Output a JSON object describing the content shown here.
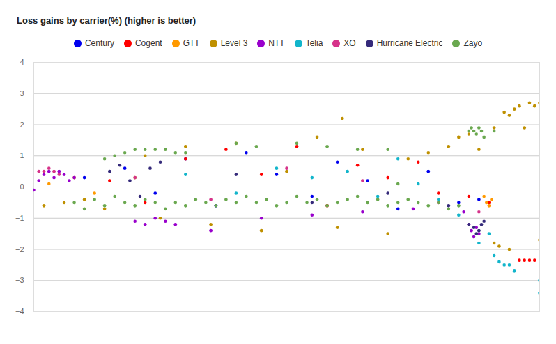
{
  "chart_data": {
    "type": "scatter",
    "title": "Loss gains by carrier(%) (higher is better)",
    "legend": "top",
    "grid": true,
    "tick_labels": "y",
    "marker": "circle",
    "xlim": [
      0,
      100
    ],
    "xticks": [],
    "ylim": [
      -4,
      4
    ],
    "yticks": [
      -4,
      -3,
      -2,
      -1,
      0,
      1,
      2,
      3,
      4
    ],
    "series": [
      {
        "name": "Century",
        "color": "#0000ee",
        "x": [
          10,
          18,
          24,
          30,
          36,
          42,
          48,
          55,
          60,
          66,
          72,
          78,
          84,
          88
        ],
        "values": [
          0.3,
          0.6,
          -0.2,
          0.9,
          -0.6,
          1.1,
          0.4,
          -0.3,
          0.8,
          0.2,
          -0.7,
          0.5,
          -0.5,
          -0.4
        ]
      },
      {
        "name": "Cogent",
        "color": "#ff0000",
        "x": [
          15,
          22,
          30,
          38,
          45,
          52,
          58,
          64,
          70,
          76,
          80,
          86,
          90,
          96,
          97,
          98,
          99
        ],
        "values": [
          0.2,
          -0.5,
          0.9,
          1.2,
          0.4,
          1.3,
          -0.6,
          0.7,
          0.3,
          0.8,
          -0.2,
          -0.3,
          -0.5,
          -2.35,
          -2.35,
          -2.35,
          -2.35
        ]
      },
      {
        "name": "GTT",
        "color": "#ff9900",
        "x": [
          3,
          8,
          12,
          89,
          89.5,
          90,
          90.5
        ],
        "values": [
          0.1,
          0.3,
          -0.2,
          -0.3,
          -0.5,
          -0.6,
          -0.4
        ]
      },
      {
        "name": "Level 3",
        "color": "#bf9000",
        "x": [
          2,
          6,
          10,
          14,
          20,
          22,
          25,
          30,
          35,
          40,
          45,
          50,
          56,
          60,
          61,
          65,
          70,
          74,
          78,
          82,
          84,
          86,
          88,
          91,
          93,
          94,
          95,
          96,
          97,
          98,
          99,
          100,
          100,
          91,
          92,
          94
        ],
        "values": [
          -0.6,
          -0.5,
          -0.4,
          -0.7,
          0.3,
          1.0,
          -1.0,
          1.3,
          -1.2,
          1.4,
          -1.4,
          0.5,
          1.6,
          -1.3,
          2.2,
          1.2,
          -1.5,
          0.9,
          1.1,
          1.3,
          1.6,
          1.7,
          1.2,
          1.9,
          2.4,
          2.3,
          2.5,
          2.6,
          1.9,
          2.7,
          2.6,
          2.7,
          -1.7,
          -1.8,
          -1.9,
          -2.0
        ]
      },
      {
        "name": "NTT",
        "color": "#9900cc",
        "x": [
          0,
          1,
          2,
          3,
          4,
          5,
          6,
          7,
          8,
          20,
          22,
          24,
          26,
          28,
          35,
          45,
          55,
          65,
          75,
          85,
          86,
          86.5,
          87,
          87.5,
          88
        ],
        "values": [
          -0.1,
          0.2,
          0.4,
          0.5,
          0.3,
          0.5,
          0.4,
          0.2,
          0.3,
          -1.1,
          -1.2,
          -1.0,
          -1.1,
          -1.2,
          -1.4,
          -1.0,
          -0.9,
          -0.8,
          -0.7,
          -0.8,
          -1.2,
          -1.4,
          -1.6,
          -1.3,
          -1.5
        ]
      },
      {
        "name": "Telia",
        "color": "#12b5cb",
        "x": [
          30,
          40,
          48,
          55,
          62,
          68,
          72,
          76,
          80,
          84,
          88,
          90,
          91,
          92,
          93,
          94,
          95,
          100,
          100
        ],
        "values": [
          0.4,
          -0.2,
          0.6,
          0.3,
          0.5,
          -0.3,
          0.9,
          0.1,
          -0.4,
          -0.9,
          -1.8,
          -1.5,
          -2.2,
          -2.4,
          -2.5,
          -2.5,
          -2.7,
          -3.0,
          -3.4
        ]
      },
      {
        "name": "XO",
        "color": "#d6338a",
        "x": [
          1,
          2,
          3,
          4,
          5,
          20,
          35,
          50,
          65,
          80,
          88
        ],
        "values": [
          0.5,
          0.5,
          0.6,
          0.5,
          0.4,
          0.3,
          -0.4,
          0.6,
          0.2,
          -0.5,
          -0.8
        ]
      },
      {
        "name": "Hurricane Electric",
        "color": "#352a7a",
        "x": [
          15,
          17,
          19,
          21,
          23,
          25,
          40,
          55,
          70,
          82,
          86,
          87,
          87.5,
          88,
          88.5,
          89
        ],
        "values": [
          0.5,
          0.7,
          0.2,
          -0.3,
          0.6,
          0.8,
          0.4,
          -0.5,
          -0.2,
          -0.6,
          -1.2,
          -1.3,
          -1.5,
          -1.4,
          -1.2,
          -1.1
        ]
      },
      {
        "name": "Zayo",
        "color": "#6aa84f",
        "x": [
          8,
          10,
          12,
          14,
          16,
          18,
          20,
          22,
          24,
          26,
          28,
          30,
          32,
          34,
          36,
          38,
          40,
          42,
          44,
          46,
          48,
          50,
          52,
          54,
          56,
          58,
          60,
          62,
          64,
          66,
          68,
          70,
          72,
          74,
          76,
          78,
          80,
          82,
          84,
          14,
          16,
          18,
          20,
          22,
          24,
          26,
          28,
          30,
          40,
          44,
          52,
          58,
          64,
          70,
          86,
          86.5,
          87,
          87.5,
          88,
          88.5,
          89,
          91,
          72
        ],
        "values": [
          -0.5,
          -0.7,
          -0.4,
          -0.6,
          -0.3,
          -0.5,
          -0.6,
          -0.4,
          -0.5,
          -0.7,
          -0.5,
          -0.6,
          -0.4,
          -0.5,
          -0.6,
          -0.4,
          -0.5,
          -0.3,
          -0.5,
          -0.4,
          -0.6,
          -0.5,
          -0.3,
          -0.5,
          -0.4,
          -0.6,
          -0.5,
          -0.4,
          -0.3,
          -0.5,
          -0.4,
          -0.6,
          -0.5,
          -0.4,
          -0.5,
          -0.6,
          -0.5,
          -0.7,
          -0.6,
          0.9,
          1.0,
          1.1,
          1.2,
          1.2,
          1.2,
          1.2,
          1.1,
          1.1,
          1.4,
          1.3,
          1.4,
          1.3,
          1.2,
          1.2,
          1.8,
          1.9,
          1.8,
          1.7,
          1.9,
          1.8,
          1.6,
          1.8,
          0.1
        ]
      }
    ]
  }
}
